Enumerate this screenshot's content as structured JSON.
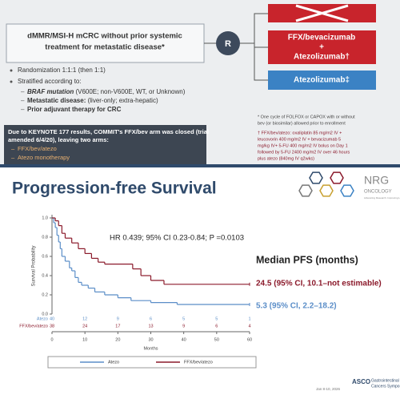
{
  "top_slide": {
    "left_box": [
      "dMMR/MSI-H mCRC without prior systemic",
      "treatment for metastatic disease*"
    ],
    "randomization": "R",
    "arms": [
      [
        "FFX/bevacizumab",
        "+",
        "Atezolizumab†"
      ],
      [
        "Atezolizumab‡"
      ]
    ],
    "bullets": [
      "Randomization 1:1:1 (then 1:1)",
      "Stratified according to:"
    ],
    "stratifiers": [
      {
        "label": "BRAF mutation",
        "text": " (V600E; non-V600E, WT, or Unknown)"
      },
      {
        "label": "Metastatic disease:",
        "text": " (liver-only; extra-hepatic)"
      },
      {
        "label": "Prior adjuvant therapy for CRC",
        "text": ""
      }
    ],
    "amendment": {
      "lines": [
        "Due to KEYNOTE 177 results, COMMIT's FFX/bev arm was closed (trial",
        "amended 6/4/20), leaving two arms:"
      ],
      "bullets": [
        "FFX/bev/atezo",
        "Atezo monotherapy"
      ]
    },
    "footnotes": [
      "* One cycle of FOLFOX or CAPOX with or without",
      "bev (or biosimilar) allowed prior to enrollment",
      "† FFX/bev/atezo: oxaliplatin 85 mg/m2 IV +",
      "leucovorin 400 mg/m2 IV + bevacizumab 5",
      "mg/kg IV+ 5-FU 400 mg/m2 IV bolus on Day 1",
      "followed by 5-FU 2400 mg/m2 IV over 46 hours",
      "plus atezo (840mg IV q2wks)"
    ]
  },
  "logo": {
    "name": "NRG",
    "sub": "ONCOLOGY",
    "tagline": "Advancing Research. Improving Lives."
  },
  "footer": {
    "date": "Jan 8-10, 2026",
    "org": "ASCO",
    "event": [
      "Gastrointestinal",
      "Cancers Symposium"
    ]
  },
  "chart_data": {
    "type": "km",
    "title": "Progression-free Survival",
    "annotation": "HR 0.439; 95% CI 0.23-0.84; P =0.0103",
    "median_title": "Median PFS (months)",
    "xlabel": "Months",
    "ylabel": "Survival Probability",
    "xlim": [
      0,
      60
    ],
    "ylim": [
      0,
      1
    ],
    "xticks": [
      0,
      10,
      20,
      30,
      40,
      50,
      60
    ],
    "yticks": [
      {
        "value": 0,
        "label": "0.0"
      },
      0.2,
      0.4,
      0.6,
      0.8,
      {
        "value": 1,
        "label": "1.0"
      }
    ],
    "series": [
      {
        "name": "Atezo",
        "color": "#5b8ec8",
        "median_label": "5.3 (95% CI, 2.2–18.2)",
        "x": [
          0,
          0.5,
          1,
          1.5,
          2,
          2.5,
          3,
          4,
          5.3,
          6,
          7,
          8,
          9,
          11,
          13,
          16,
          20,
          24,
          30,
          38,
          60
        ],
        "values": [
          1,
          0.95,
          0.9,
          0.82,
          0.75,
          0.68,
          0.6,
          0.55,
          0.48,
          0.45,
          0.38,
          0.33,
          0.3,
          0.27,
          0.23,
          0.2,
          0.17,
          0.14,
          0.12,
          0.1,
          0.1
        ],
        "at_risk": [
          40,
          12,
          9,
          6,
          5,
          5,
          1
        ]
      },
      {
        "name": "FFX/bev/atezo",
        "color": "#8b1a2b",
        "median_label": "24.5 (95% CI, 10.1–not estimable)",
        "x": [
          0,
          1,
          2,
          3,
          4,
          6,
          8,
          10,
          12,
          14,
          16,
          24.5,
          27,
          30,
          34,
          60
        ],
        "values": [
          1,
          0.97,
          0.92,
          0.84,
          0.79,
          0.74,
          0.68,
          0.63,
          0.58,
          0.54,
          0.52,
          0.47,
          0.4,
          0.35,
          0.31,
          0.31
        ],
        "at_risk": [
          38,
          24,
          17,
          13,
          9,
          6,
          4
        ]
      }
    ]
  }
}
